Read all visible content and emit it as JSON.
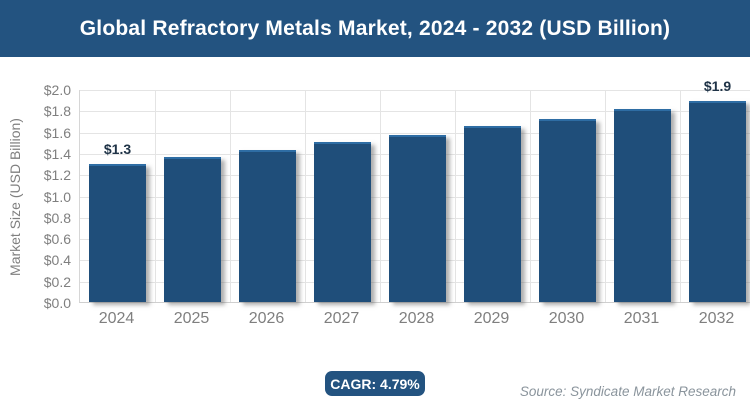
{
  "banner": {
    "title": "Global Refractory Metals Market, 2024 - 2032 (USD Billion)",
    "bg_color": "#235380",
    "text_color": "#ffffff"
  },
  "chart_data": {
    "type": "bar",
    "title": "Global Refractory Metals Market, 2024 - 2032 (USD Billion)",
    "categories": [
      "2024",
      "2025",
      "2026",
      "2027",
      "2028",
      "2029",
      "2030",
      "2031",
      "2032"
    ],
    "values": [
      1.3,
      1.36,
      1.43,
      1.5,
      1.57,
      1.65,
      1.72,
      1.81,
      1.89
    ],
    "point_labels": [
      "$1.3",
      "",
      "",
      "",
      "",
      "",
      "",
      "",
      "$1.9"
    ],
    "xlabel": "",
    "ylabel": "Market Size (USD Billion)",
    "ylim": [
      0,
      2.0
    ],
    "ytick_step": 0.2,
    "ytick_labels": [
      "$0.0",
      "$0.2",
      "$0.4",
      "$0.6",
      "$0.8",
      "$1.0",
      "$1.2",
      "$1.4",
      "$1.6",
      "$1.8",
      "$2.0"
    ],
    "grid": true,
    "legend_position": "none",
    "bar_color": "#1F4E7A",
    "grid_color": "#e4e4e4",
    "tick_label_color": "#7f7f7f",
    "data_label_color": "#1f3347"
  },
  "footer": {
    "cagr_label": "CAGR: 4.79%",
    "source": "Source: Syndicate Market Research"
  }
}
